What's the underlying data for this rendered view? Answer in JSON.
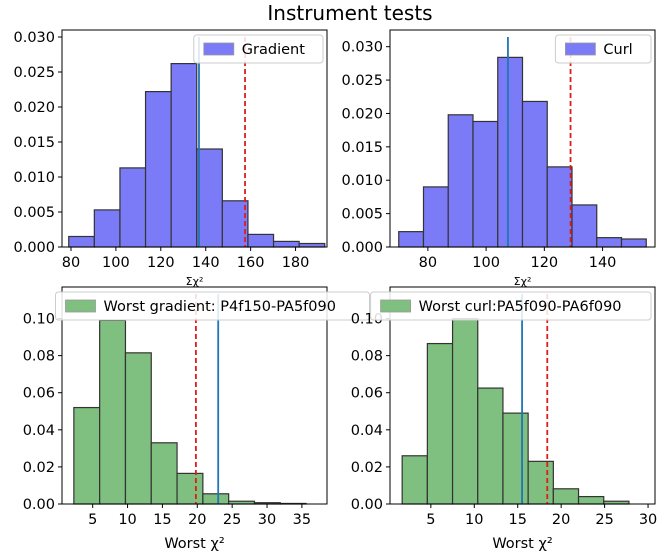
{
  "figure": {
    "title": "Instrument tests"
  },
  "colors": {
    "blue_bar": "#7b7bf7",
    "green_bar": "#7fbf7f",
    "vline_solid": "#1f77b4",
    "vline_dashed": "#e31a1c"
  },
  "chart_data": [
    {
      "type": "bar",
      "subtype": "histogram",
      "xlabel": "Σχ²",
      "ylabel": "",
      "xlim": [
        76,
        194
      ],
      "ylim": [
        0,
        0.031
      ],
      "xticks": [
        80,
        100,
        120,
        140,
        160,
        180
      ],
      "yticks": [
        0.0,
        0.005,
        0.01,
        0.015,
        0.02,
        0.025,
        0.03
      ],
      "ytick_labels": [
        "0.000",
        "0.005",
        "0.010",
        "0.015",
        "0.020",
        "0.025",
        "0.030"
      ],
      "bin_edges": [
        79,
        90.4,
        101.8,
        113.2,
        124.6,
        136,
        147.4,
        158.8,
        170.2,
        181.6,
        193
      ],
      "values": [
        0.0015,
        0.0053,
        0.0113,
        0.0222,
        0.0262,
        0.014,
        0.0066,
        0.0018,
        0.0008,
        0.0005
      ],
      "color": "blue_bar",
      "legend": {
        "label": "Gradient",
        "placement": "upper right"
      },
      "vlines": [
        {
          "x": 137,
          "style": "solid",
          "color": "vline_solid"
        },
        {
          "x": 157.5,
          "style": "dashed",
          "color": "vline_dashed"
        }
      ],
      "grid": false
    },
    {
      "type": "bar",
      "subtype": "histogram",
      "xlabel": "Σχ²",
      "ylabel": "",
      "xlim": [
        67,
        158
      ],
      "ylim": [
        0,
        0.0325
      ],
      "xticks": [
        80,
        100,
        120,
        140
      ],
      "yticks": [
        0.0,
        0.005,
        0.01,
        0.015,
        0.02,
        0.025,
        0.03
      ],
      "ytick_labels": [
        "0.000",
        "0.005",
        "0.010",
        "0.015",
        "0.020",
        "0.025",
        "0.030"
      ],
      "bin_edges": [
        70,
        78.5,
        87,
        95.5,
        104,
        112.5,
        121,
        129.5,
        138,
        146.5,
        155
      ],
      "values": [
        0.0023,
        0.009,
        0.0198,
        0.0188,
        0.0284,
        0.0218,
        0.012,
        0.0063,
        0.0014,
        0.0012
      ],
      "color": "blue_bar",
      "legend": {
        "label": "Curl",
        "placement": "upper right"
      },
      "vlines": [
        {
          "x": 107.5,
          "style": "solid",
          "color": "vline_solid"
        },
        {
          "x": 129,
          "style": "dashed",
          "color": "vline_dashed"
        }
      ],
      "grid": false
    },
    {
      "type": "bar",
      "subtype": "histogram",
      "xlabel": "Worst χ²",
      "ylabel": "",
      "xlim": [
        0.6,
        38.6
      ],
      "ylim": [
        0,
        0.117
      ],
      "xticks": [
        5,
        10,
        15,
        20,
        25,
        30,
        35
      ],
      "yticks": [
        0.0,
        0.02,
        0.04,
        0.06,
        0.08,
        0.1
      ],
      "ytick_labels": [
        "0.00",
        "0.02",
        "0.04",
        "0.06",
        "0.08",
        "0.10"
      ],
      "bin_edges": [
        2.3,
        6.0,
        9.7,
        13.4,
        17.1,
        20.8,
        24.5,
        28.2,
        31.9,
        35.6
      ],
      "values": [
        0.052,
        0.099,
        0.0815,
        0.033,
        0.0165,
        0.0055,
        0.0015,
        0.0007,
        0.0003
      ],
      "color": "green_bar",
      "legend": {
        "label": "Worst gradient: P4f150-PA5f090",
        "placement": "upper center"
      },
      "vlines": [
        {
          "x": 23,
          "style": "solid",
          "color": "vline_solid"
        },
        {
          "x": 19.8,
          "style": "dashed",
          "color": "vline_dashed"
        }
      ],
      "grid": false
    },
    {
      "type": "bar",
      "subtype": "histogram",
      "xlabel": "Worst χ²",
      "ylabel": "",
      "xlim": [
        0.3,
        30.8
      ],
      "ylim": [
        0,
        0.117
      ],
      "xticks": [
        5,
        10,
        15,
        20,
        25,
        30
      ],
      "yticks": [
        0.0,
        0.02,
        0.04,
        0.06,
        0.08,
        0.1
      ],
      "ytick_labels": [
        "0.00",
        "0.02",
        "0.04",
        "0.06",
        "0.08",
        "0.10"
      ],
      "bin_edges": [
        1.7,
        4.6,
        7.5,
        10.4,
        13.3,
        16.2,
        19.1,
        22.0,
        24.9,
        27.8
      ],
      "values": [
        0.026,
        0.0865,
        0.1,
        0.0625,
        0.049,
        0.023,
        0.0082,
        0.004,
        0.0015
      ],
      "color": "green_bar",
      "legend": {
        "label": "Worst curl:PA5f090-PA6f090",
        "placement": "upper right"
      },
      "vlines": [
        {
          "x": 15.5,
          "style": "solid",
          "color": "vline_solid"
        },
        {
          "x": 18.4,
          "style": "dashed",
          "color": "vline_dashed"
        }
      ],
      "grid": false
    }
  ]
}
